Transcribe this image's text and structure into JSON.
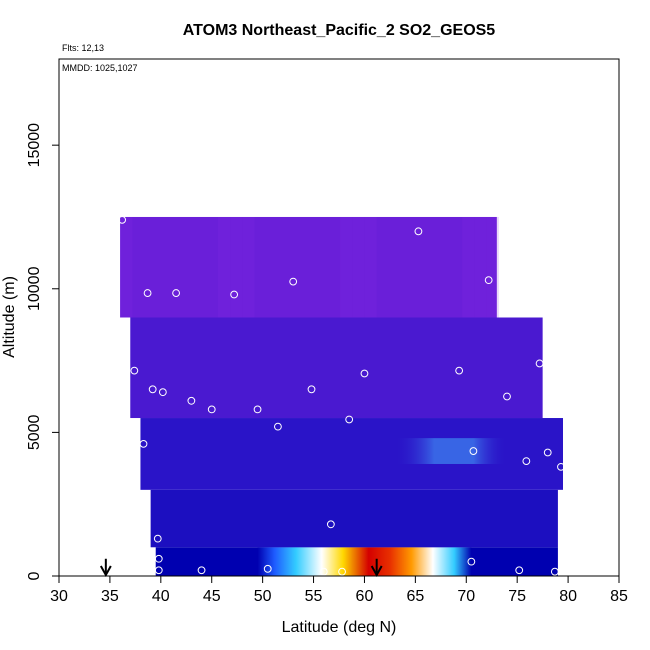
{
  "chart_data": {
    "type": "heatmap",
    "title": "ATOM3 Northeast_Pacific_2 SO2_GEOS5",
    "subtitle_flights": "Flts: 12,13",
    "subtitle_dates": "MMDD: 1025,1027",
    "xlabel": "Latitude (deg N)",
    "ylabel": "Altitude (m)",
    "xlim": [
      30,
      85
    ],
    "ylim": [
      0,
      18000
    ],
    "x_ticks": [
      30,
      35,
      40,
      45,
      50,
      55,
      60,
      65,
      70,
      75,
      80,
      85
    ],
    "y_ticks": [
      0,
      5000,
      10000,
      15000
    ],
    "grid": false,
    "heat_bands": [
      {
        "alt_min": 0,
        "alt_max": 1000,
        "lat_min": 39.5,
        "lat_max": 79.0,
        "level": "low",
        "hotspot_lat": [
          53.5,
          66.5
        ],
        "hotspot_peak_lat": 58.5
      },
      {
        "alt_min": 1000,
        "alt_max": 3000,
        "lat_min": 39.0,
        "lat_max": 79.0,
        "level": "low-mid"
      },
      {
        "alt_min": 3000,
        "alt_max": 5500,
        "lat_min": 38.0,
        "lat_max": 79.5,
        "level": "mid",
        "highlight_lat": [
          63.0,
          74.0
        ]
      },
      {
        "alt_min": 5500,
        "alt_max": 9000,
        "lat_min": 37.0,
        "lat_max": 77.5,
        "level": "mid-high"
      },
      {
        "alt_min": 9000,
        "alt_max": 12500,
        "lat_min": 36.0,
        "lat_max": 73.0,
        "level": "high"
      }
    ],
    "flight_points": [
      {
        "lat": 36.2,
        "alt": 12400
      },
      {
        "lat": 38.7,
        "alt": 9850
      },
      {
        "lat": 41.5,
        "alt": 9850
      },
      {
        "lat": 47.2,
        "alt": 9800
      },
      {
        "lat": 53.0,
        "alt": 10250
      },
      {
        "lat": 65.3,
        "alt": 12000
      },
      {
        "lat": 72.2,
        "alt": 10300
      },
      {
        "lat": 37.4,
        "alt": 7150
      },
      {
        "lat": 39.2,
        "alt": 6500
      },
      {
        "lat": 40.2,
        "alt": 6400
      },
      {
        "lat": 43.0,
        "alt": 6100
      },
      {
        "lat": 45.0,
        "alt": 5800
      },
      {
        "lat": 49.5,
        "alt": 5800
      },
      {
        "lat": 54.8,
        "alt": 6500
      },
      {
        "lat": 60.0,
        "alt": 7050
      },
      {
        "lat": 69.3,
        "alt": 7150
      },
      {
        "lat": 74.0,
        "alt": 6250
      },
      {
        "lat": 77.2,
        "alt": 7400
      },
      {
        "lat": 38.3,
        "alt": 4600
      },
      {
        "lat": 51.5,
        "alt": 5200
      },
      {
        "lat": 58.5,
        "alt": 5450
      },
      {
        "lat": 70.7,
        "alt": 4350
      },
      {
        "lat": 75.9,
        "alt": 4000
      },
      {
        "lat": 78.0,
        "alt": 4300
      },
      {
        "lat": 79.3,
        "alt": 3800
      },
      {
        "lat": 56.7,
        "alt": 1800
      },
      {
        "lat": 39.7,
        "alt": 1300
      },
      {
        "lat": 39.8,
        "alt": 600
      },
      {
        "lat": 39.8,
        "alt": 200
      },
      {
        "lat": 44.0,
        "alt": 200
      },
      {
        "lat": 50.5,
        "alt": 250
      },
      {
        "lat": 56.0,
        "alt": 150
      },
      {
        "lat": 57.8,
        "alt": 150
      },
      {
        "lat": 70.5,
        "alt": 500
      },
      {
        "lat": 75.2,
        "alt": 200
      },
      {
        "lat": 78.7,
        "alt": 150
      }
    ],
    "arrows": [
      {
        "lat": 34.6,
        "alt": 500
      },
      {
        "lat": 61.2,
        "alt": 500
      }
    ],
    "colors": {
      "high": "#6a1fd9",
      "mid": "#2a14c8",
      "low": "#0000b0",
      "highlight": "#3a6ee8",
      "hot_peak": "#d40000",
      "hot_orange": "#ff9a00",
      "hot_yellow": "#ffd800",
      "hot_white": "#ffffff",
      "hot_cyan": "#33ccff",
      "points": "#ffffff"
    }
  }
}
